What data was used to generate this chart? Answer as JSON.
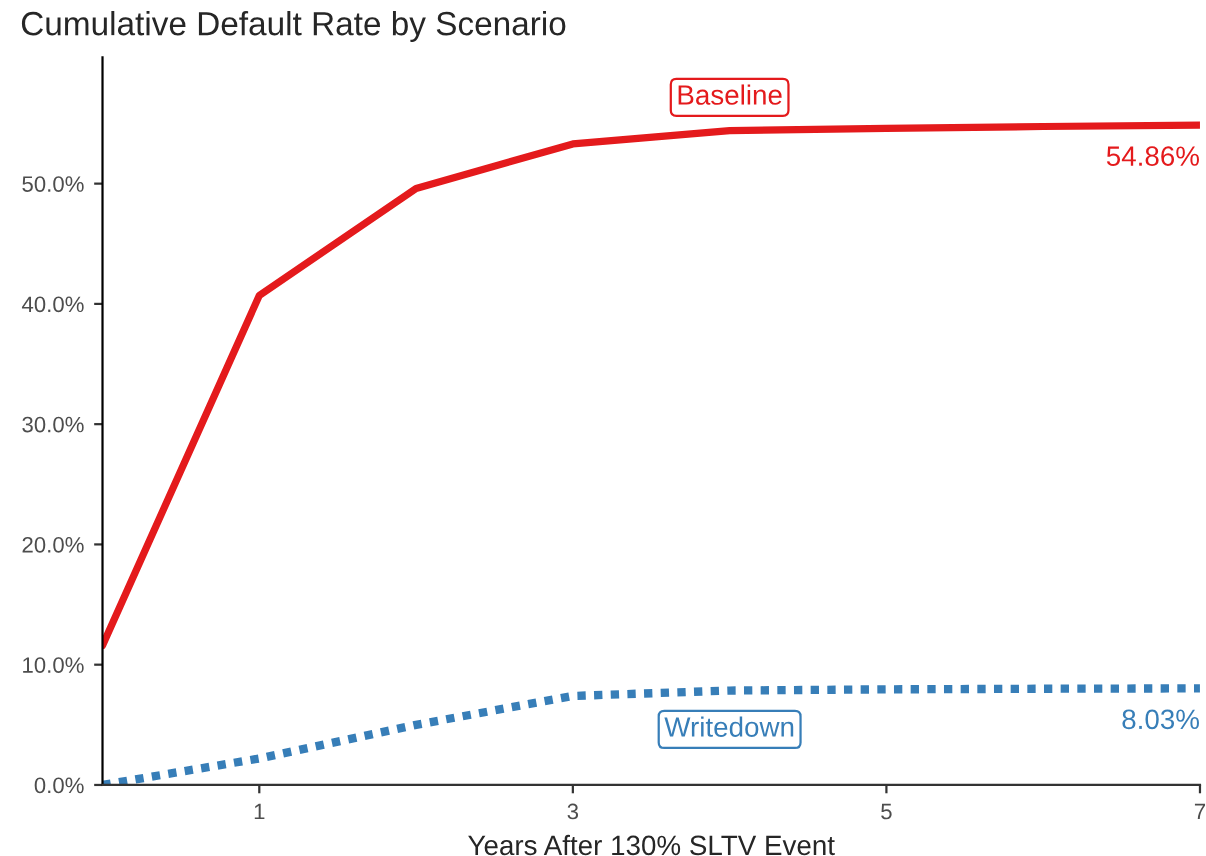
{
  "chart_data": {
    "type": "line",
    "title": "Cumulative Default Rate by Scenario",
    "xlabel": "Years After 130% SLTV Event",
    "x": [
      0,
      1,
      2,
      3,
      4,
      5,
      6,
      7
    ],
    "series": [
      {
        "name": "Baseline",
        "color": "#e41a1c",
        "line_style": "solid",
        "values": [
          11.6,
          40.7,
          49.6,
          53.3,
          54.4,
          54.6,
          54.75,
          54.86
        ],
        "value_labels": [
          null,
          null,
          null,
          null,
          null,
          null,
          null,
          "54.86%"
        ]
      },
      {
        "name": "Writedown",
        "color": "#377eb8",
        "line_style": "dotted",
        "values": [
          0,
          2.2,
          5.0,
          7.4,
          7.85,
          7.95,
          8.0,
          8.03
        ],
        "value_labels": [
          null,
          null,
          null,
          null,
          null,
          null,
          null,
          "8.03%"
        ]
      }
    ],
    "xlim": [
      0,
      7
    ],
    "xticks": [
      1,
      3,
      5,
      7
    ],
    "ylim": [
      0,
      60.5
    ],
    "yticks": [
      {
        "value": 0,
        "label": "0.0%"
      },
      {
        "value": 10,
        "label": "10.0%"
      },
      {
        "value": 20,
        "label": "20.0%"
      },
      {
        "value": 30,
        "label": "30.0%"
      },
      {
        "value": 40,
        "label": "40.0%"
      },
      {
        "value": 50,
        "label": "50.0%"
      }
    ],
    "grid": false,
    "legend": false,
    "marker": "none"
  }
}
